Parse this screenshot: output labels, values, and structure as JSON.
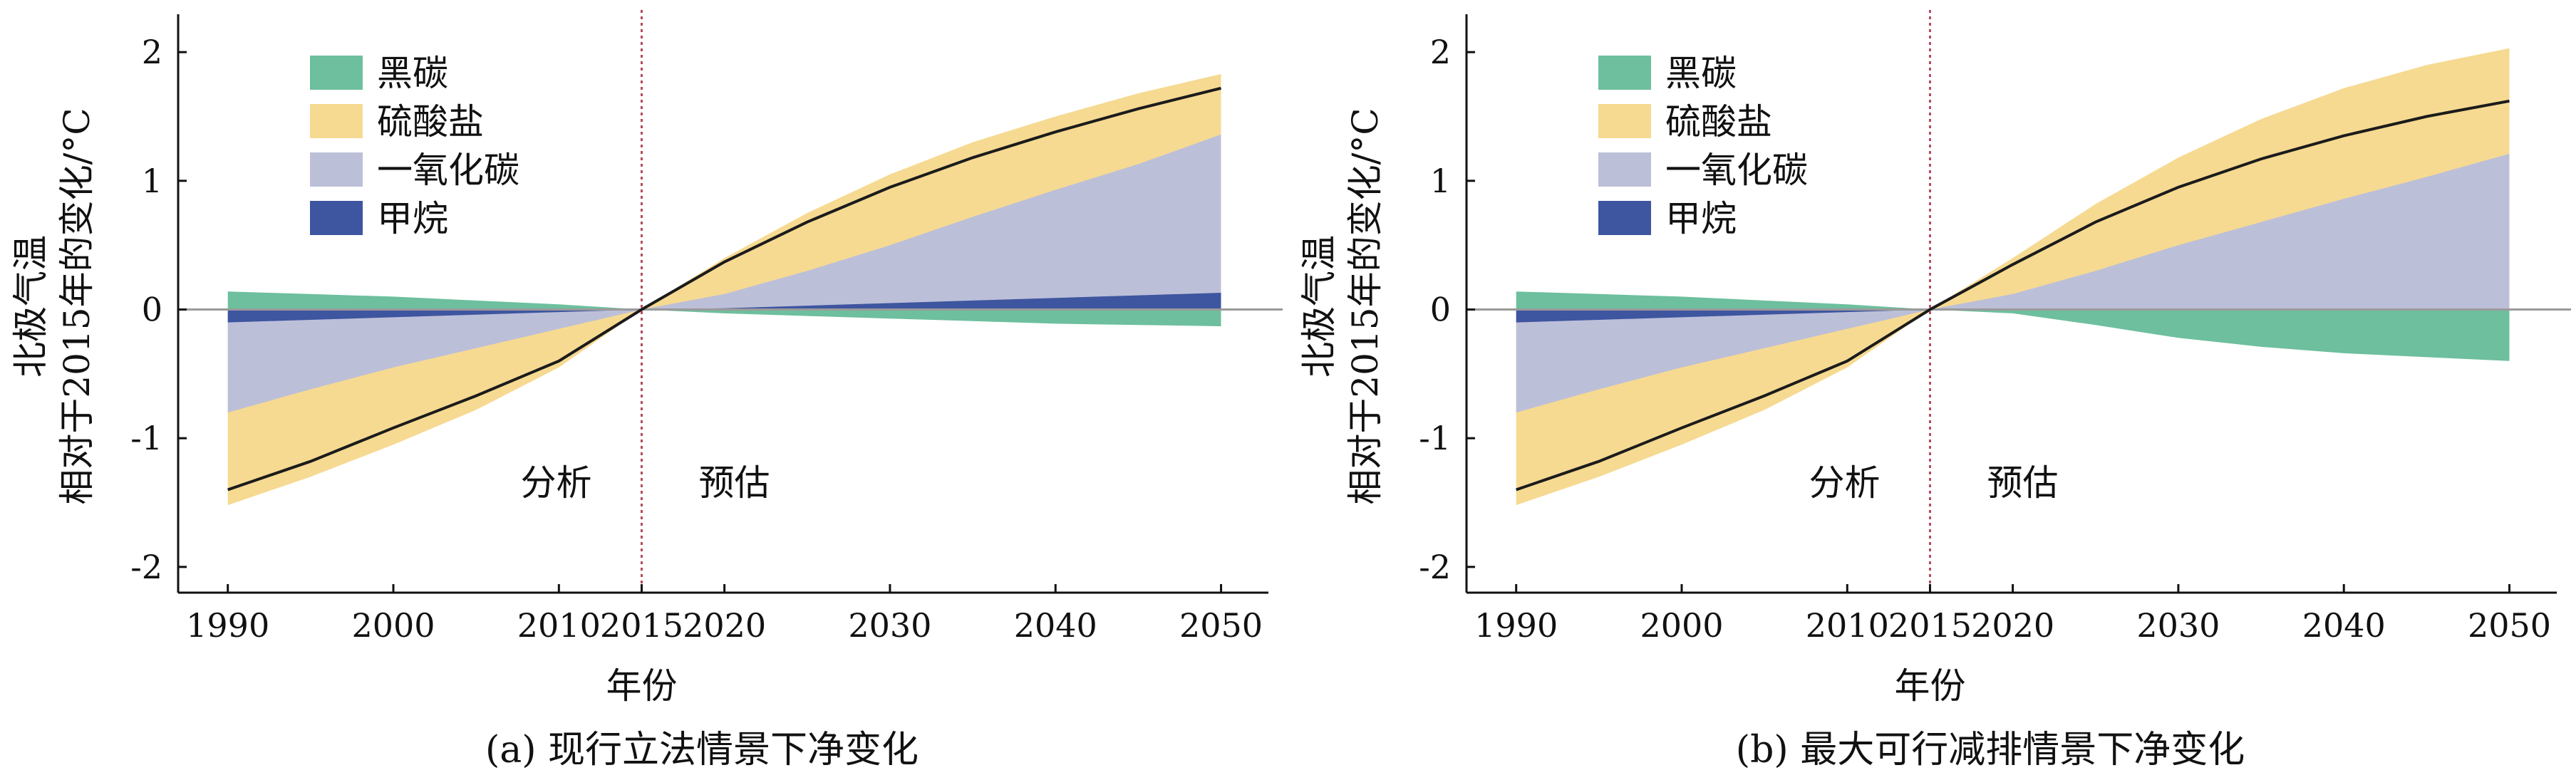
{
  "legend_title": "",
  "colors": {
    "black_carbon": "#6dbf9d",
    "sulfate": "#f6da92",
    "carbon_monoxide": "#bcbfd8",
    "methane": "#3e55a0",
    "net_line": "#1b1b1b",
    "divider": "#b44a5a",
    "zero_line": "#9a9a9a"
  },
  "chart_data": [
    {
      "type": "area",
      "caption": "(a) 现行立法情景下净变化",
      "xlabel": "年份",
      "ylabel_line1": "北极气温",
      "ylabel_line2": "相对于2015年的变化/°C",
      "xlim": [
        1987,
        2052
      ],
      "ylim": [
        -2.2,
        2.25
      ],
      "xticks": [
        1990,
        2000,
        2010,
        2015,
        2020,
        2030,
        2040,
        2050
      ],
      "yticks": [
        -2,
        -1,
        0,
        1,
        2
      ],
      "region_labels": {
        "left": "分析",
        "right": "预估",
        "divider_x": 2015
      },
      "legend": [
        {
          "key": "black_carbon",
          "label": "黑碳"
        },
        {
          "key": "sulfate",
          "label": "硫酸盐"
        },
        {
          "key": "carbon_monoxide",
          "label": "一氧化碳"
        },
        {
          "key": "methane",
          "label": "甲烷"
        }
      ],
      "x": [
        1990,
        1995,
        2000,
        2005,
        2010,
        2015,
        2020,
        2025,
        2030,
        2035,
        2040,
        2045,
        2050
      ],
      "bands": {
        "black_carbon": {
          "lower": [
            0.0,
            0.0,
            0.0,
            0.0,
            0.0,
            0.0,
            -0.03,
            -0.05,
            -0.07,
            -0.09,
            -0.11,
            -0.12,
            -0.13
          ],
          "upper": [
            0.14,
            0.12,
            0.1,
            0.07,
            0.04,
            0.0,
            0.0,
            0.0,
            0.0,
            0.0,
            0.0,
            0.0,
            0.0
          ]
        },
        "methane": {
          "lower": [
            -0.1,
            -0.08,
            -0.06,
            -0.04,
            -0.02,
            0.0,
            0.0,
            0.0,
            0.0,
            0.0,
            0.0,
            0.0,
            0.0
          ],
          "upper": [
            0.0,
            0.0,
            0.0,
            0.0,
            0.0,
            0.0,
            0.01,
            0.03,
            0.05,
            0.07,
            0.09,
            0.11,
            0.13
          ]
        },
        "carbon_monoxide": {
          "lower": [
            -0.8,
            -0.62,
            -0.45,
            -0.3,
            -0.15,
            0.0,
            0.0,
            0.0,
            0.0,
            0.0,
            0.0,
            0.0,
            0.0
          ],
          "upper": [
            0.0,
            0.0,
            0.0,
            0.0,
            0.0,
            0.0,
            0.12,
            0.3,
            0.5,
            0.72,
            0.93,
            1.13,
            1.36
          ]
        },
        "sulfate": {
          "lower": [
            -1.52,
            -1.3,
            -1.05,
            -0.78,
            -0.45,
            0.0,
            0.0,
            0.0,
            0.0,
            0.0,
            0.0,
            0.0,
            0.0
          ],
          "upper": [
            0.0,
            0.0,
            0.0,
            0.0,
            0.0,
            0.0,
            0.4,
            0.75,
            1.05,
            1.3,
            1.5,
            1.68,
            1.83
          ]
        }
      },
      "net": [
        -1.4,
        -1.18,
        -0.92,
        -0.67,
        -0.4,
        0.0,
        0.37,
        0.68,
        0.95,
        1.18,
        1.38,
        1.56,
        1.72
      ]
    },
    {
      "type": "area",
      "caption": "(b) 最大可行减排情景下净变化",
      "xlabel": "年份",
      "ylabel_line1": "北极气温",
      "ylabel_line2": "相对于2015年的变化/°C",
      "xlim": [
        1987,
        2052
      ],
      "ylim": [
        -2.2,
        2.25
      ],
      "xticks": [
        1990,
        2000,
        2010,
        2015,
        2020,
        2030,
        2040,
        2050
      ],
      "yticks": [
        -2,
        -1,
        0,
        1,
        2
      ],
      "region_labels": {
        "left": "分析",
        "right": "预估",
        "divider_x": 2015
      },
      "legend": [
        {
          "key": "black_carbon",
          "label": "黑碳"
        },
        {
          "key": "sulfate",
          "label": "硫酸盐"
        },
        {
          "key": "carbon_monoxide",
          "label": "一氧化碳"
        },
        {
          "key": "methane",
          "label": "甲烷"
        }
      ],
      "x": [
        1990,
        1995,
        2000,
        2005,
        2010,
        2015,
        2020,
        2025,
        2030,
        2035,
        2040,
        2045,
        2050
      ],
      "bands": {
        "black_carbon": {
          "lower": [
            0.0,
            0.0,
            0.0,
            0.0,
            0.0,
            0.0,
            -0.03,
            -0.12,
            -0.22,
            -0.29,
            -0.34,
            -0.37,
            -0.4
          ],
          "upper": [
            0.14,
            0.12,
            0.1,
            0.07,
            0.04,
            0.0,
            0.0,
            0.0,
            0.0,
            0.0,
            0.0,
            0.0,
            0.0
          ]
        },
        "methane": {
          "lower": [
            -0.1,
            -0.08,
            -0.06,
            -0.04,
            -0.02,
            0.0,
            0.0,
            0.0,
            0.0,
            0.0,
            0.0,
            0.0,
            0.0
          ],
          "upper": [
            0.0,
            0.0,
            0.0,
            0.0,
            0.0,
            0.0,
            0.0,
            0.0,
            0.0,
            0.0,
            0.0,
            0.0,
            0.0
          ]
        },
        "carbon_monoxide": {
          "lower": [
            -0.8,
            -0.62,
            -0.45,
            -0.3,
            -0.15,
            0.0,
            0.0,
            0.0,
            0.0,
            0.0,
            0.0,
            0.0,
            0.0
          ],
          "upper": [
            0.0,
            0.0,
            0.0,
            0.0,
            0.0,
            0.0,
            0.12,
            0.3,
            0.5,
            0.68,
            0.86,
            1.03,
            1.21
          ]
        },
        "sulfate": {
          "lower": [
            -1.52,
            -1.3,
            -1.05,
            -0.78,
            -0.45,
            0.0,
            0.0,
            0.0,
            0.0,
            0.0,
            0.0,
            0.0,
            0.0
          ],
          "upper": [
            0.0,
            0.0,
            0.0,
            0.0,
            0.0,
            0.0,
            0.4,
            0.82,
            1.18,
            1.48,
            1.72,
            1.9,
            2.03
          ]
        }
      },
      "net": [
        -1.4,
        -1.18,
        -0.92,
        -0.67,
        -0.4,
        0.0,
        0.35,
        0.68,
        0.95,
        1.17,
        1.35,
        1.5,
        1.62
      ]
    }
  ]
}
